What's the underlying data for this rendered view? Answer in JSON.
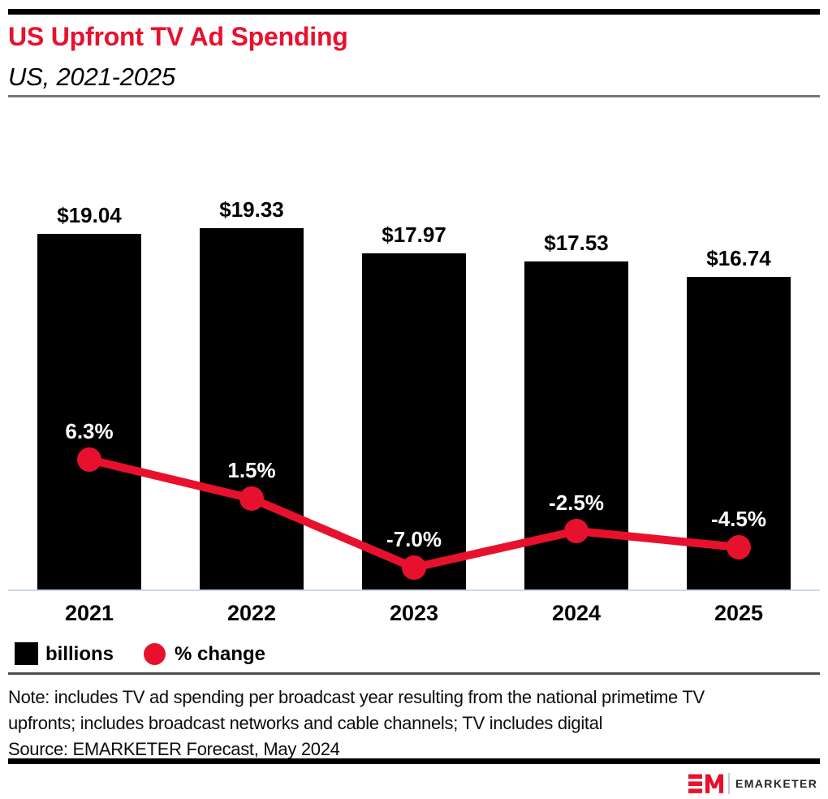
{
  "header": {
    "title": "US Upfront TV Ad Spending",
    "subtitle": "US, 2021-2025"
  },
  "colors": {
    "accent_red": "#e8112d",
    "bar_black": "#000000",
    "baseline_blue": "#ccd7ed"
  },
  "chart_data": {
    "type": "bar",
    "combo": "bar+line",
    "title": "US Upfront TV Ad Spending",
    "subtitle": "US, 2021-2025",
    "categories": [
      "2021",
      "2022",
      "2023",
      "2024",
      "2025"
    ],
    "series": [
      {
        "name": "billions",
        "type": "bar",
        "values": [
          19.04,
          19.33,
          17.97,
          17.53,
          16.74
        ],
        "data_labels": [
          "$19.04",
          "$19.33",
          "$17.97",
          "$17.53",
          "$16.74"
        ],
        "color": "#000000"
      },
      {
        "name": "% change",
        "type": "line",
        "values": [
          6.3,
          1.5,
          -7.0,
          -2.5,
          -4.5
        ],
        "data_labels": [
          "6.3%",
          "1.5%",
          "-7.0%",
          "-2.5%",
          "-4.5%"
        ],
        "color": "#e8112d"
      }
    ],
    "grid": false,
    "legend_position": "bottom",
    "y_axis_visible": false
  },
  "legend": {
    "items": [
      {
        "label": "billions",
        "swatch": "square",
        "color": "#000000"
      },
      {
        "label": "% change",
        "swatch": "circle",
        "color": "#e8112d"
      }
    ]
  },
  "note": {
    "lines": [
      "Note: includes TV ad spending per broadcast year resulting from the national primetime TV",
      "upfronts; includes broadcast networks and cable channels; TV includes digital"
    ]
  },
  "source": "Source: EMARKETER Forecast, May 2024",
  "footer": {
    "brand": "EMARKETER",
    "logo": "EM-monogram"
  }
}
